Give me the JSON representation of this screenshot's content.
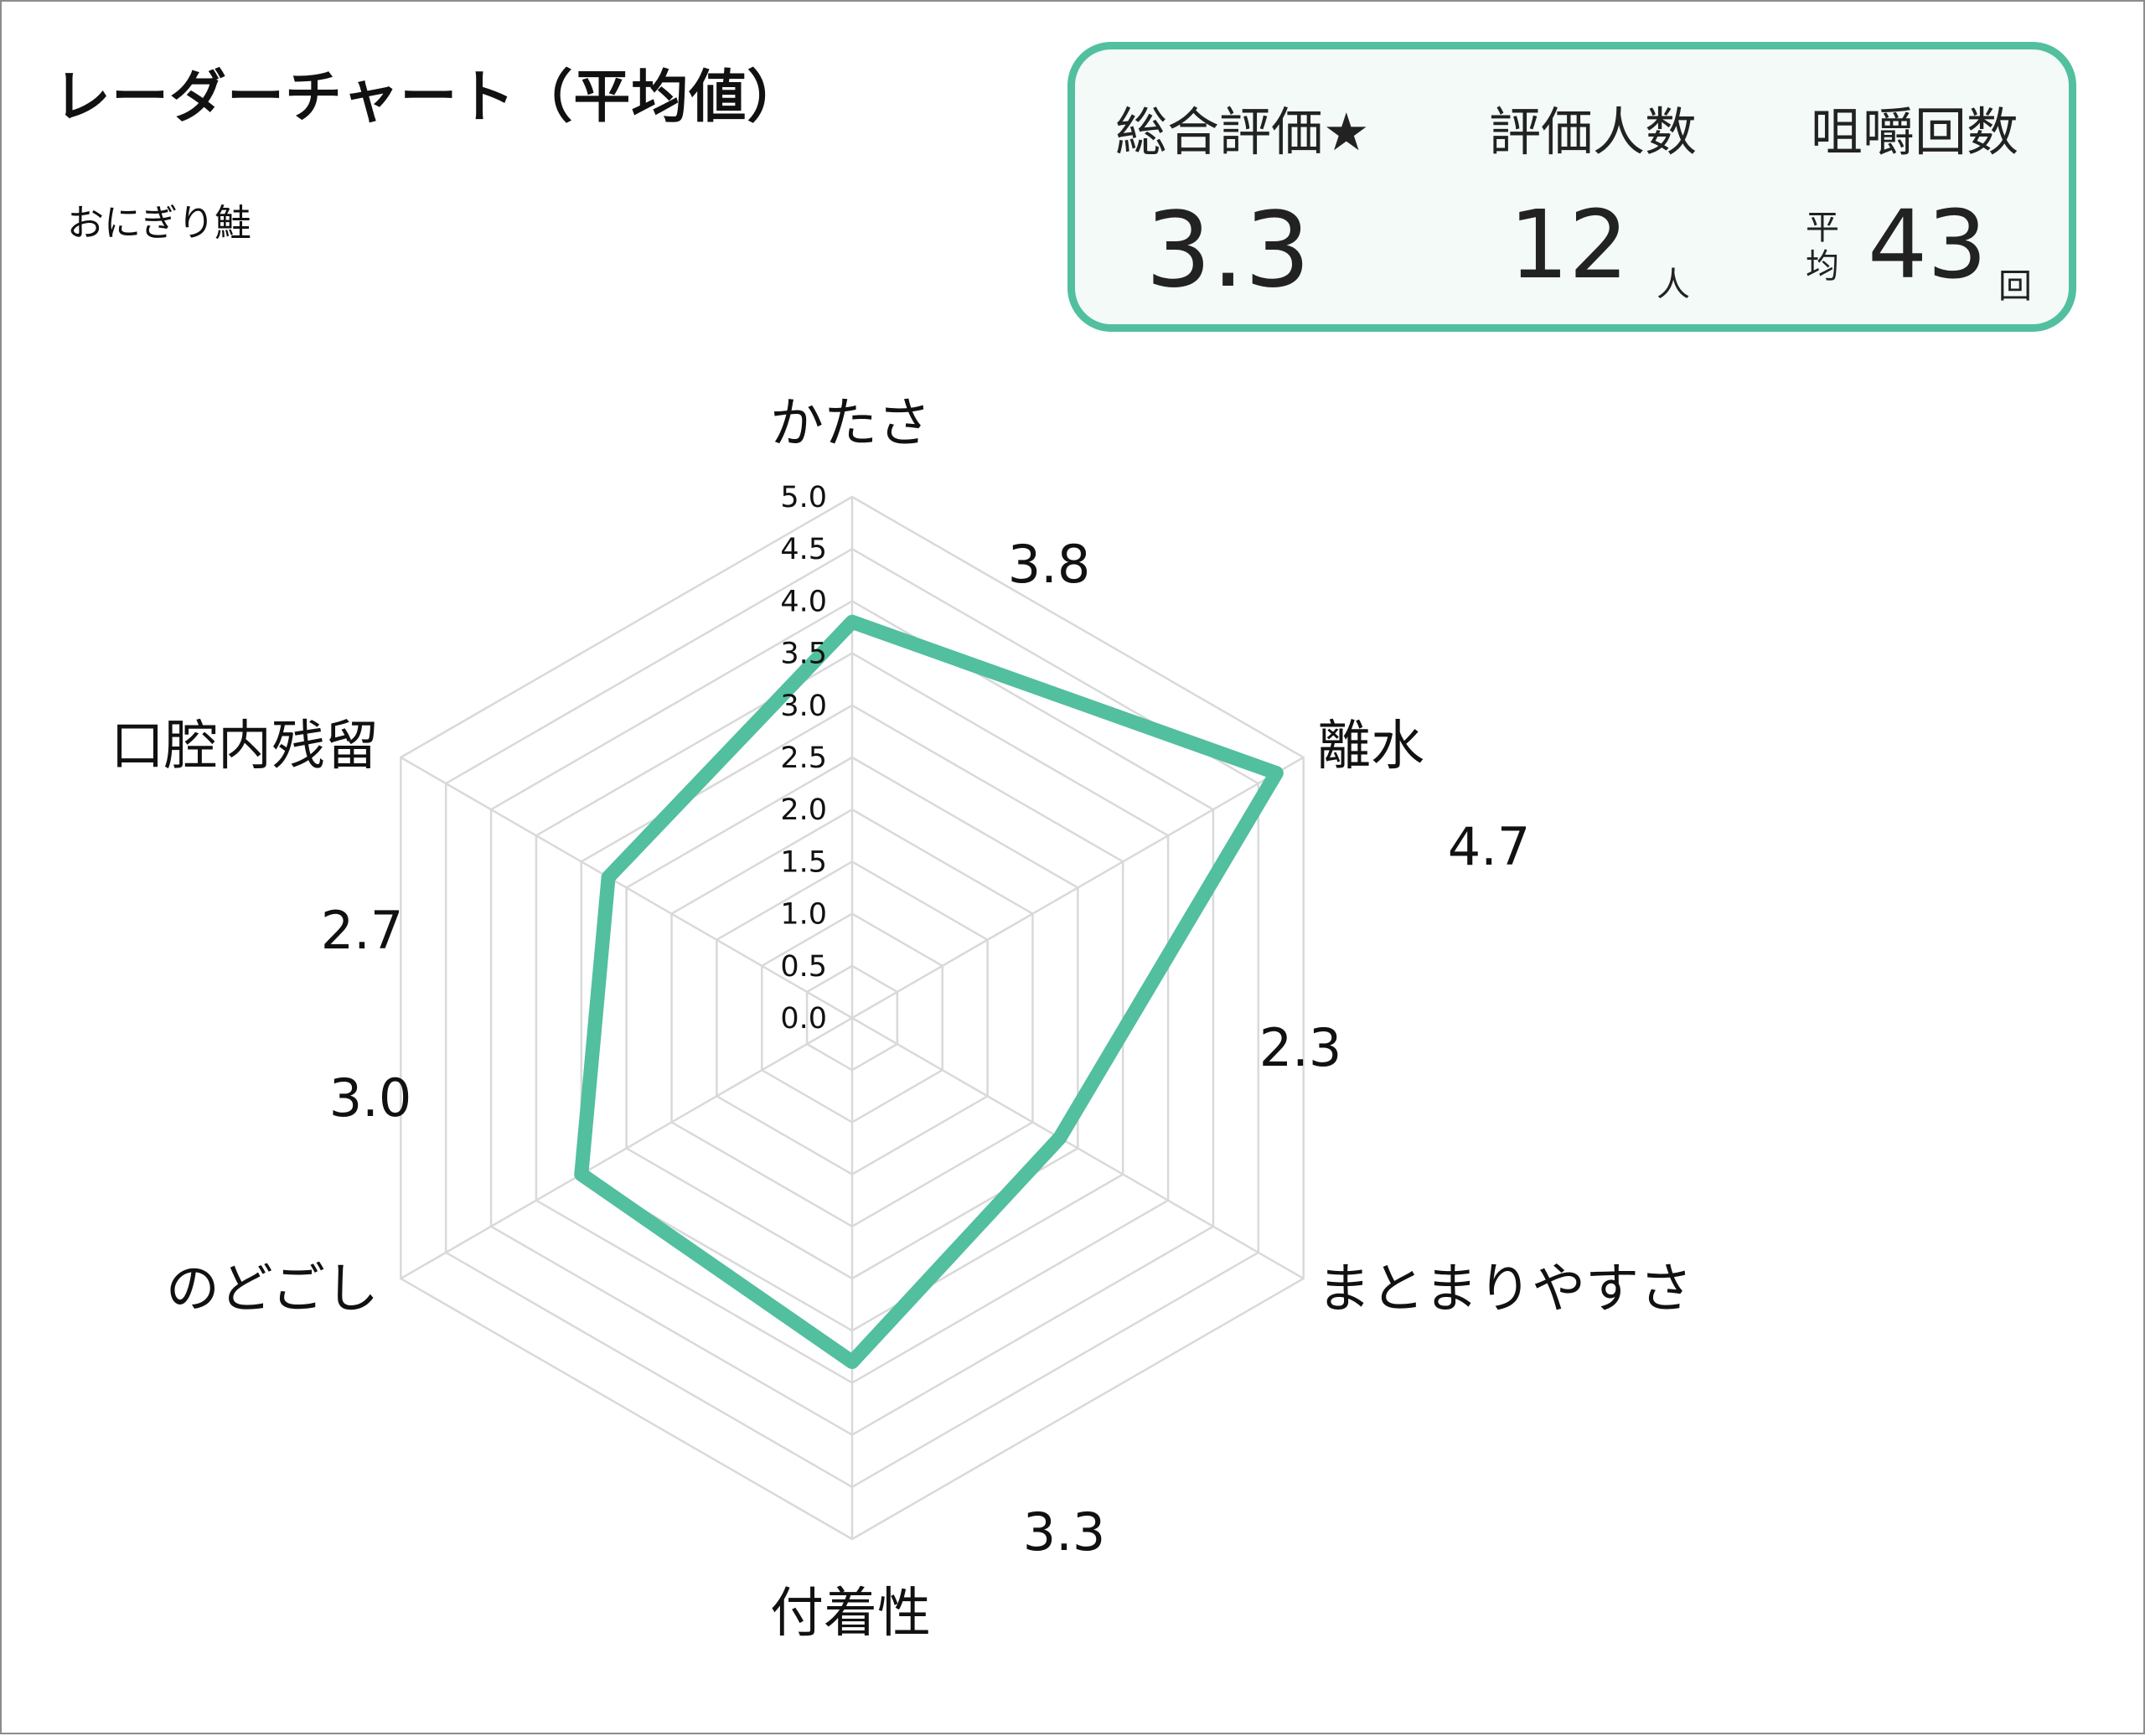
{
  "title": "レーダーチャート（平均値）",
  "subtitle": "おにぎり鮭",
  "summary": {
    "overall_label": "総合評価★",
    "overall_value": "3.3",
    "raters_label": "評価人数",
    "raters_value": "12",
    "raters_unit": "人",
    "chews_label": "咀嚼回数",
    "chews_prefix_1": "平",
    "chews_prefix_2": "均",
    "chews_value": "43",
    "chews_unit": "回"
  },
  "colors": {
    "accent": "#52bf9f",
    "grid": "#d9d9d9",
    "frame": "#8c8c8c"
  },
  "chart_data": {
    "type": "radar",
    "categories": [
      "かたさ",
      "離水",
      "まとまりやすさ",
      "付着性",
      "のどごし",
      "口腔内残留"
    ],
    "values": [
      3.8,
      4.7,
      2.3,
      3.3,
      3.0,
      2.7
    ],
    "value_labels": [
      "3.8",
      "4.7",
      "2.3",
      "3.3",
      "3.0",
      "2.7"
    ],
    "rlim": [
      0,
      5
    ],
    "ticks": [
      "0.0",
      "0.5",
      "1.0",
      "1.5",
      "2.0",
      "2.5",
      "3.0",
      "3.5",
      "4.0",
      "4.5",
      "5.0"
    ],
    "grid": true,
    "legend": "none"
  }
}
